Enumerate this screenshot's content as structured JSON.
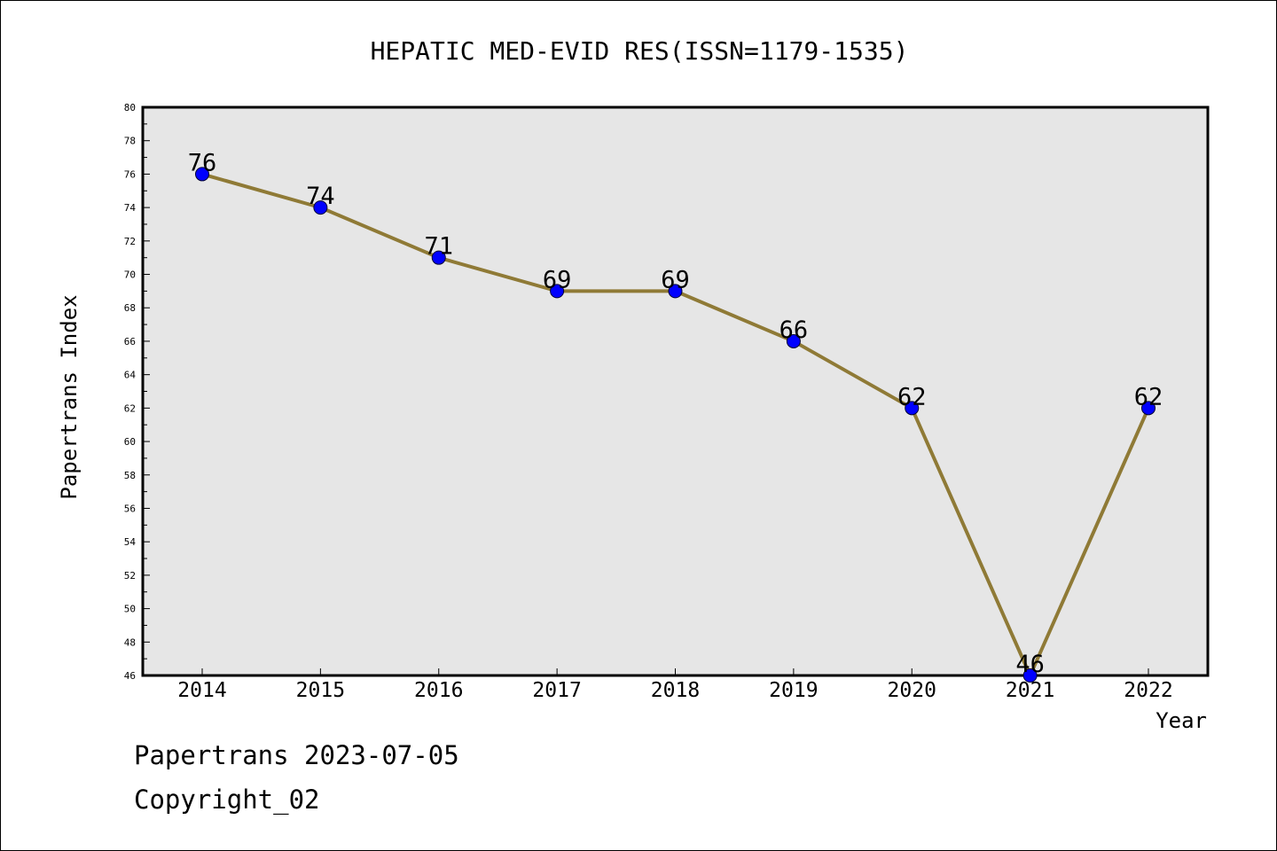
{
  "chart_data": {
    "type": "line",
    "title": "HEPATIC MED-EVID RES(ISSN=1179-1535)",
    "xlabel": "Year",
    "ylabel": "Papertrans Index",
    "categories": [
      "2014",
      "2015",
      "2016",
      "2017",
      "2018",
      "2019",
      "2020",
      "2021",
      "2022"
    ],
    "values": [
      76,
      74,
      71,
      69,
      69,
      66,
      62,
      46,
      62
    ],
    "data_labels": [
      "76",
      "74",
      "71",
      "69",
      "69",
      "66",
      "62",
      "46",
      "62"
    ],
    "ylim": [
      46,
      80
    ],
    "y_ticks": [
      "46",
      "48",
      "50",
      "52",
      "54",
      "56",
      "58",
      "60",
      "62",
      "64",
      "66",
      "68",
      "70",
      "72",
      "74",
      "76",
      "78",
      "80"
    ],
    "grid": false,
    "line_color": "#8f7a36",
    "marker_color": "#0000ff",
    "plot_background": "#e6e6e6"
  },
  "footer": {
    "date_text": "Papertrans 2023-07-05",
    "copyright_text": "Copyright_02"
  }
}
